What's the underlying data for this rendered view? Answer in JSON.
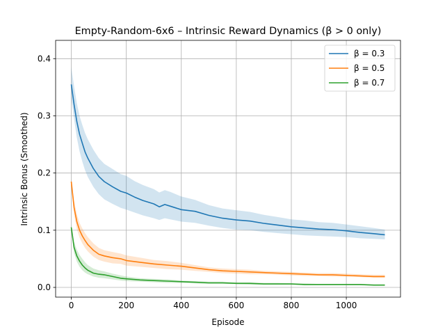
{
  "chart_data": {
    "type": "line",
    "title": "Empty-Random-6x6 – Intrinsic Reward Dynamics (β > 0 only)",
    "xlabel": "Episode",
    "ylabel": "Intrinsic Bonus (Smoothed)",
    "xlim": [
      -57,
      1197
    ],
    "ylim": [
      -0.017,
      0.432
    ],
    "xticks": [
      0,
      200,
      400,
      600,
      800,
      1000
    ],
    "yticks": [
      0.0,
      0.1,
      0.2,
      0.3,
      0.4
    ],
    "ytick_labels": [
      "0.0",
      "0.1",
      "0.2",
      "0.3",
      "0.4"
    ],
    "grid": true,
    "legend_position": "top-right",
    "series": [
      {
        "name": "β = 0.3",
        "color": "#1f77b4",
        "x": [
          0,
          10,
          20,
          30,
          40,
          50,
          60,
          80,
          100,
          120,
          150,
          180,
          200,
          230,
          260,
          300,
          320,
          340,
          360,
          400,
          450,
          500,
          550,
          600,
          650,
          700,
          750,
          800,
          850,
          900,
          950,
          1000,
          1050,
          1100,
          1140
        ],
        "values": [
          0.355,
          0.32,
          0.29,
          0.268,
          0.252,
          0.237,
          0.226,
          0.208,
          0.194,
          0.185,
          0.176,
          0.168,
          0.165,
          0.158,
          0.152,
          0.146,
          0.141,
          0.145,
          0.142,
          0.136,
          0.133,
          0.126,
          0.121,
          0.118,
          0.116,
          0.112,
          0.109,
          0.106,
          0.104,
          0.102,
          0.101,
          0.099,
          0.096,
          0.094,
          0.092
        ],
        "lower": [
          0.33,
          0.295,
          0.262,
          0.238,
          0.22,
          0.205,
          0.193,
          0.176,
          0.163,
          0.154,
          0.146,
          0.139,
          0.136,
          0.131,
          0.126,
          0.121,
          0.118,
          0.121,
          0.119,
          0.115,
          0.113,
          0.108,
          0.104,
          0.101,
          0.1,
          0.097,
          0.095,
          0.093,
          0.091,
          0.09,
          0.089,
          0.088,
          0.086,
          0.085,
          0.084
        ],
        "upper": [
          0.385,
          0.352,
          0.322,
          0.3,
          0.284,
          0.27,
          0.259,
          0.241,
          0.226,
          0.216,
          0.207,
          0.198,
          0.195,
          0.186,
          0.179,
          0.172,
          0.166,
          0.17,
          0.167,
          0.159,
          0.153,
          0.144,
          0.138,
          0.135,
          0.132,
          0.127,
          0.123,
          0.119,
          0.117,
          0.114,
          0.113,
          0.11,
          0.107,
          0.104,
          0.101
        ]
      },
      {
        "name": "β = 0.5",
        "color": "#ff7f0e",
        "x": [
          0,
          10,
          20,
          30,
          40,
          50,
          60,
          80,
          100,
          120,
          150,
          180,
          200,
          250,
          300,
          350,
          400,
          450,
          500,
          550,
          600,
          650,
          700,
          750,
          800,
          850,
          900,
          950,
          1000,
          1050,
          1100,
          1140
        ],
        "values": [
          0.185,
          0.14,
          0.115,
          0.1,
          0.09,
          0.082,
          0.075,
          0.065,
          0.058,
          0.055,
          0.052,
          0.05,
          0.047,
          0.044,
          0.041,
          0.039,
          0.037,
          0.034,
          0.031,
          0.029,
          0.028,
          0.027,
          0.026,
          0.025,
          0.024,
          0.023,
          0.022,
          0.022,
          0.021,
          0.02,
          0.019,
          0.019
        ],
        "lower": [
          0.18,
          0.128,
          0.102,
          0.087,
          0.077,
          0.069,
          0.063,
          0.054,
          0.048,
          0.045,
          0.042,
          0.041,
          0.038,
          0.036,
          0.034,
          0.032,
          0.031,
          0.029,
          0.027,
          0.025,
          0.024,
          0.023,
          0.023,
          0.022,
          0.021,
          0.02,
          0.02,
          0.019,
          0.019,
          0.018,
          0.017,
          0.017
        ],
        "upper": [
          0.19,
          0.152,
          0.128,
          0.113,
          0.103,
          0.095,
          0.088,
          0.077,
          0.069,
          0.065,
          0.062,
          0.059,
          0.056,
          0.052,
          0.048,
          0.046,
          0.043,
          0.039,
          0.035,
          0.033,
          0.032,
          0.031,
          0.029,
          0.028,
          0.027,
          0.026,
          0.025,
          0.025,
          0.024,
          0.023,
          0.022,
          0.022
        ]
      },
      {
        "name": "β = 0.7",
        "color": "#2ca02c",
        "x": [
          0,
          10,
          20,
          30,
          40,
          50,
          60,
          80,
          100,
          120,
          150,
          180,
          200,
          250,
          300,
          350,
          400,
          450,
          500,
          550,
          600,
          650,
          700,
          750,
          800,
          850,
          900,
          950,
          1000,
          1050,
          1100,
          1140
        ],
        "values": [
          0.105,
          0.07,
          0.055,
          0.046,
          0.039,
          0.034,
          0.03,
          0.025,
          0.023,
          0.022,
          0.019,
          0.016,
          0.015,
          0.013,
          0.012,
          0.011,
          0.01,
          0.009,
          0.008,
          0.008,
          0.007,
          0.007,
          0.006,
          0.006,
          0.006,
          0.005,
          0.005,
          0.005,
          0.005,
          0.005,
          0.004,
          0.004
        ],
        "lower": [
          0.1,
          0.06,
          0.045,
          0.036,
          0.03,
          0.026,
          0.023,
          0.019,
          0.017,
          0.016,
          0.014,
          0.012,
          0.011,
          0.01,
          0.009,
          0.008,
          0.008,
          0.007,
          0.006,
          0.006,
          0.006,
          0.005,
          0.005,
          0.005,
          0.005,
          0.004,
          0.004,
          0.004,
          0.004,
          0.004,
          0.003,
          0.003
        ],
        "upper": [
          0.11,
          0.08,
          0.066,
          0.057,
          0.05,
          0.044,
          0.039,
          0.033,
          0.03,
          0.028,
          0.024,
          0.021,
          0.019,
          0.016,
          0.015,
          0.014,
          0.012,
          0.011,
          0.01,
          0.01,
          0.009,
          0.009,
          0.008,
          0.008,
          0.007,
          0.007,
          0.006,
          0.006,
          0.006,
          0.006,
          0.005,
          0.005
        ]
      }
    ]
  }
}
